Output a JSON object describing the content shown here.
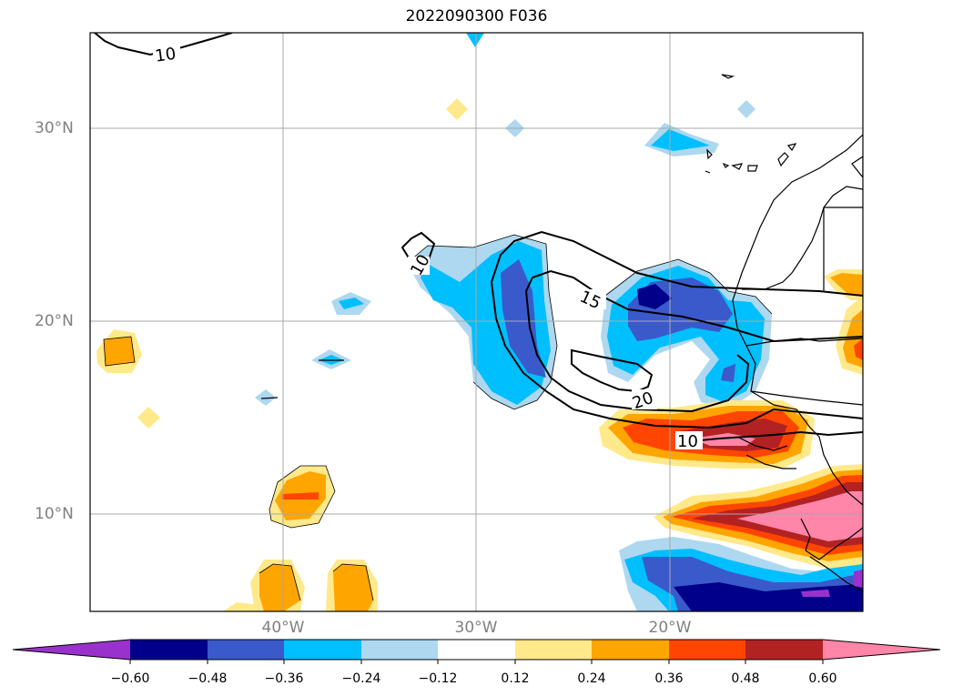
{
  "title": "2022090300 F036",
  "map": {
    "lat_labels": [
      "30°N",
      "20°N",
      "10°N"
    ],
    "lon_labels": [
      "40°W",
      "30°W",
      "20°W"
    ],
    "extent": {
      "lon_min": -50,
      "lon_max": -10,
      "lat_min": 5,
      "lat_max": 35
    },
    "gridlines": true,
    "contour_line_labels": [
      "10",
      "10",
      "15",
      "20",
      "10"
    ]
  },
  "colorbar": {
    "extend": "both",
    "tick_labels": [
      "−0.60",
      "−0.48",
      "−0.36",
      "−0.24",
      "−0.12",
      "0.12",
      "0.24",
      "0.36",
      "0.48",
      "0.60"
    ],
    "colors": [
      "#9932cc",
      "#00008b",
      "#3a5acb",
      "#00bfff",
      "#add8f0",
      "#ffffff",
      "#ffe98a",
      "#ffa500",
      "#ff4500",
      "#b22222",
      "#ff85a9"
    ]
  }
}
